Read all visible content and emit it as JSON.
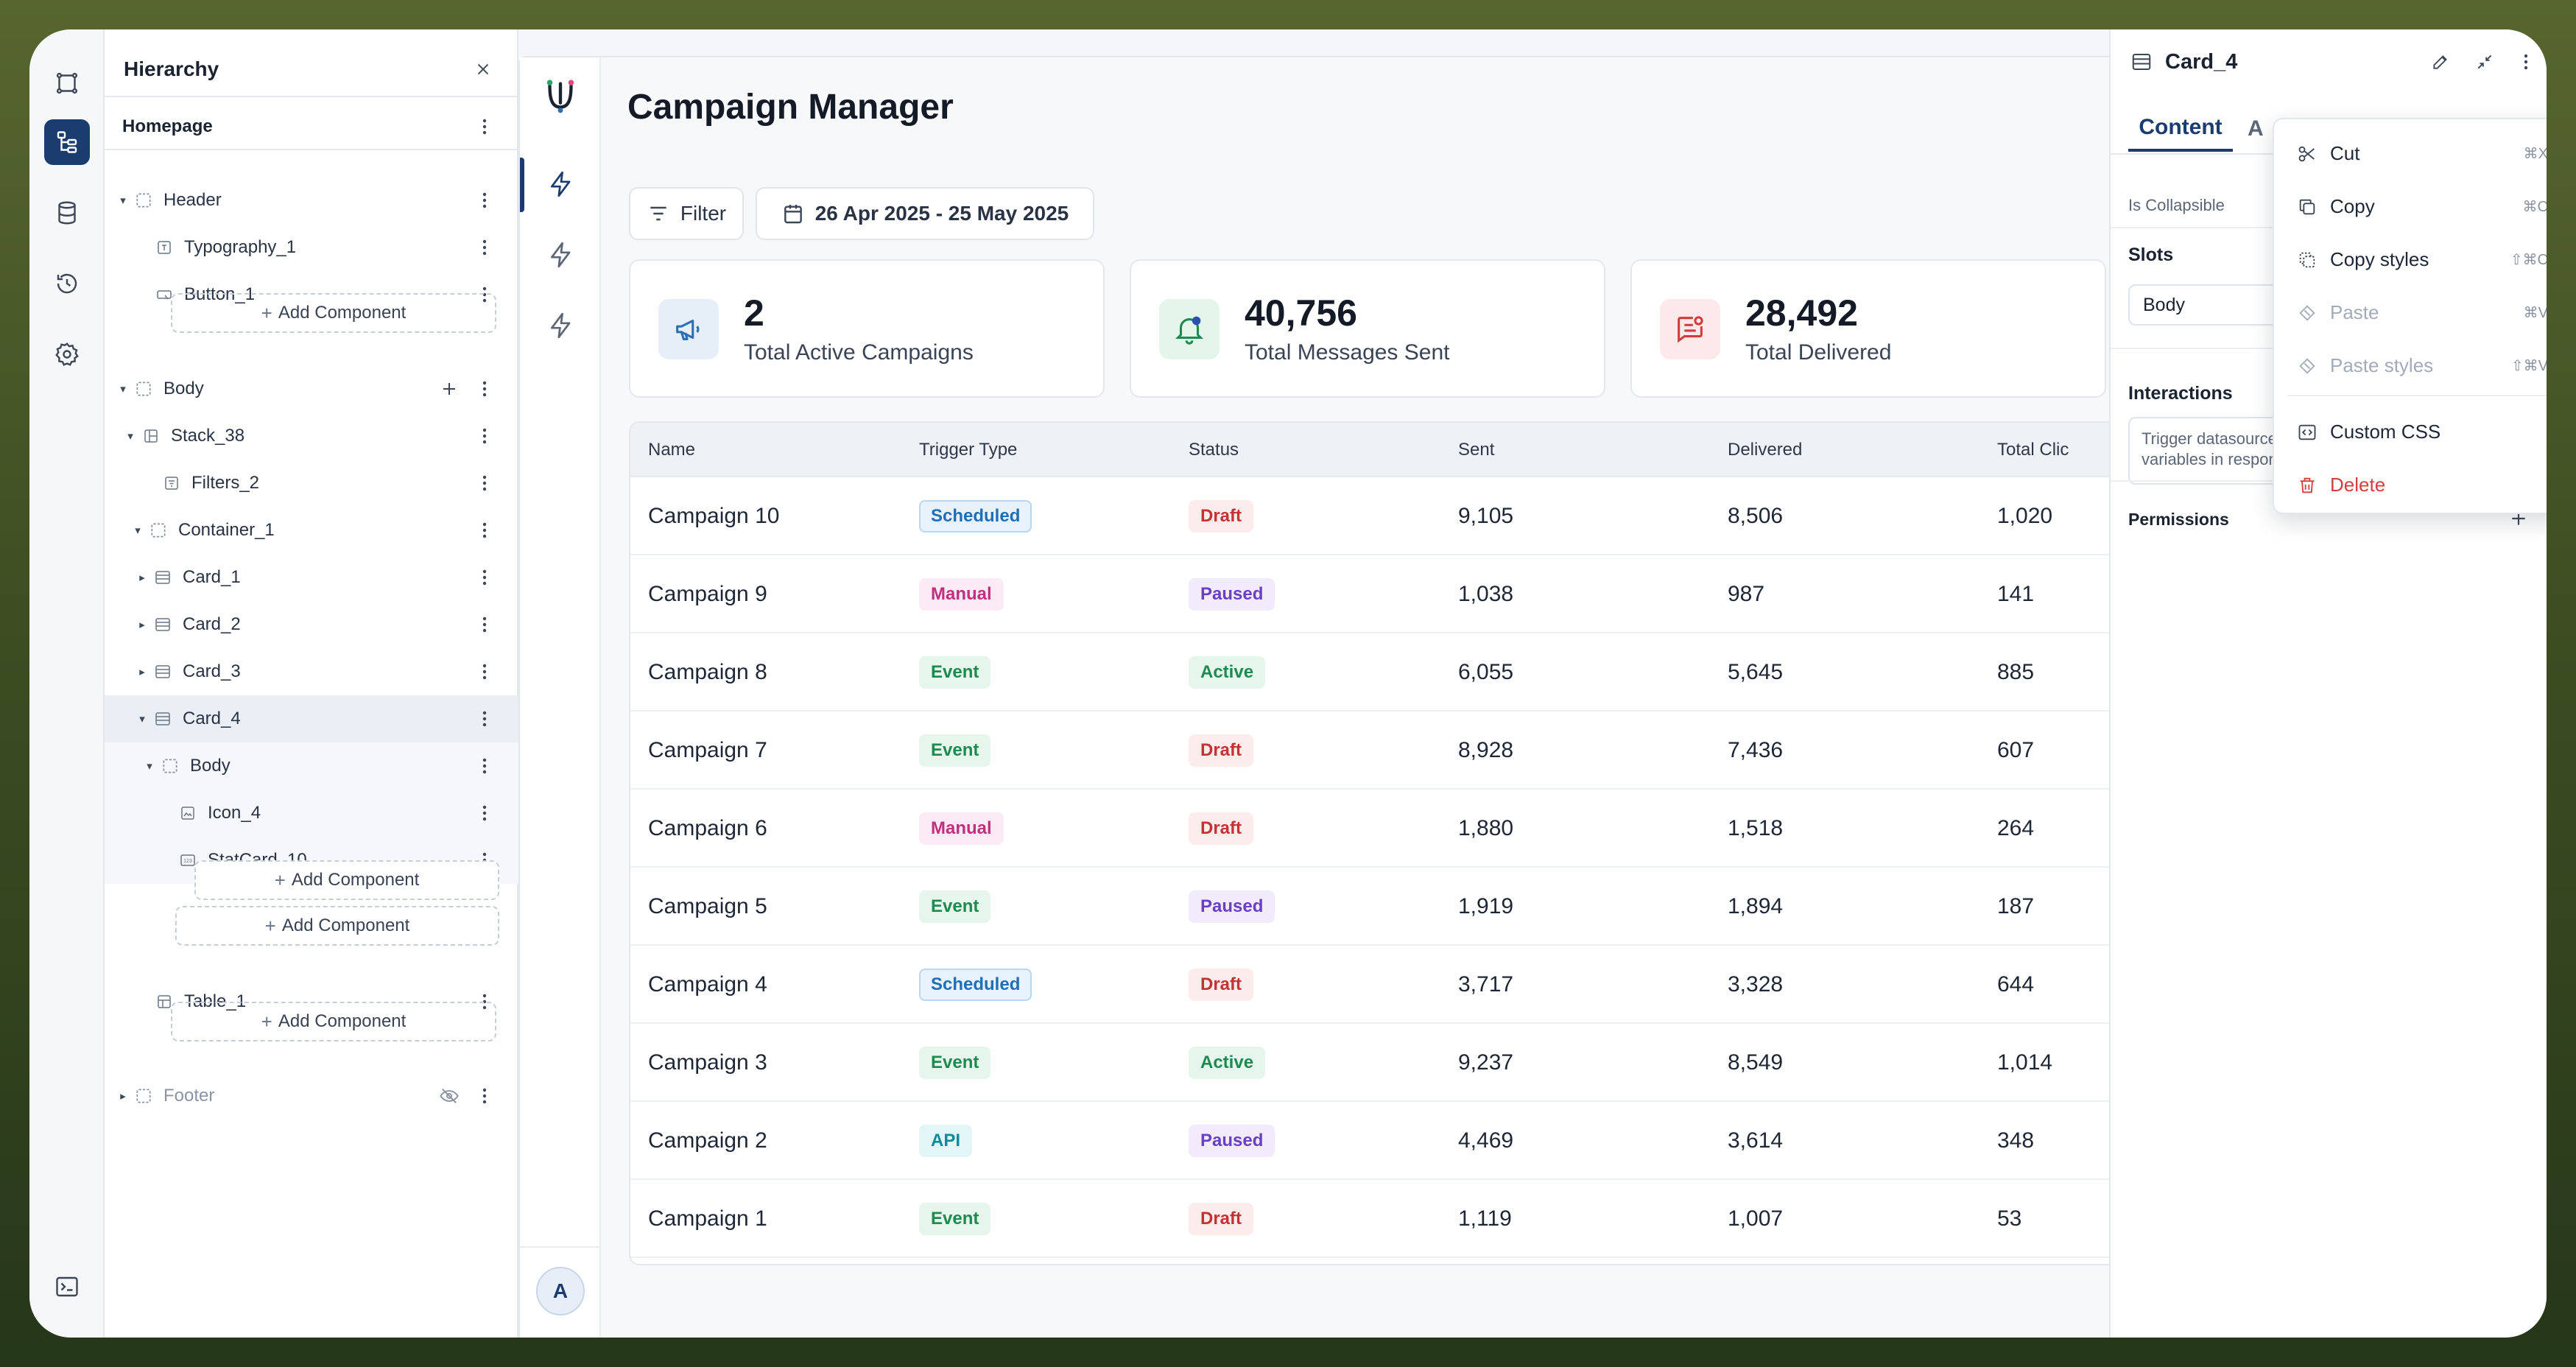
{
  "sidebar_rail": {
    "icons": [
      "frame-icon",
      "hierarchy-icon",
      "database-icon",
      "history-icon",
      "settings-icon",
      "terminal-icon"
    ],
    "active_color": "#1a3c6e"
  },
  "hierarchy": {
    "title": "Hierarchy",
    "page": "Homepage",
    "rows": [
      {
        "label": "Header",
        "icon": "container-icon",
        "caret": "▾"
      },
      {
        "label": "Typography_1",
        "icon": "text-icon",
        "caret": ""
      },
      {
        "label": "Button_1",
        "icon": "button-icon",
        "caret": ""
      },
      {
        "label": "Body",
        "icon": "container-icon",
        "caret": "▾"
      },
      {
        "label": "Stack_38",
        "icon": "stack-icon",
        "caret": "▾"
      },
      {
        "label": "Filters_2",
        "icon": "filter-icon",
        "caret": ""
      },
      {
        "label": "Container_1",
        "icon": "container-icon",
        "caret": "▾"
      },
      {
        "label": "Card_1",
        "icon": "card-icon",
        "caret": "▸"
      },
      {
        "label": "Card_2",
        "icon": "card-icon",
        "caret": "▸"
      },
      {
        "label": "Card_3",
        "icon": "card-icon",
        "caret": "▸"
      },
      {
        "label": "Card_4",
        "icon": "card-icon",
        "caret": "▾"
      },
      {
        "label": "Body",
        "icon": "container-icon",
        "caret": "▾"
      },
      {
        "label": "Icon_4",
        "icon": "image-icon",
        "caret": ""
      },
      {
        "label": "StatCard_10",
        "icon": "statcard-icon",
        "caret": ""
      },
      {
        "label": "Table_1",
        "icon": "table-icon",
        "caret": ""
      },
      {
        "label": "Footer",
        "icon": "container-icon",
        "caret": "▸"
      }
    ],
    "add_component": "Add Component"
  },
  "app": {
    "title": "Campaign Manager",
    "avatar": "A",
    "filter_label": "Filter",
    "date_range": "26 Apr 2025 - 25 May 2025",
    "stats": [
      {
        "value": "2",
        "label": "Total Active Campaigns",
        "icon": "megaphone-icon",
        "color": "#2c6fb3",
        "bg": "#e6eef8"
      },
      {
        "value": "40,756",
        "label": "Total Messages Sent",
        "icon": "bell-icon",
        "color": "#1e8a50",
        "bg": "#e4f5ea"
      },
      {
        "value": "28,492",
        "label": "Total Delivered",
        "icon": "message-check-icon",
        "color": "#d23b3b",
        "bg": "#fde9e9"
      }
    ],
    "table": {
      "headers": [
        "Name",
        "Trigger Type",
        "Status",
        "Sent",
        "Delivered",
        "Total Clic"
      ],
      "rows": [
        [
          "Campaign 10",
          "Scheduled",
          "Draft",
          "9,105",
          "8,506",
          "1,020"
        ],
        [
          "Campaign 9",
          "Manual",
          "Paused",
          "1,038",
          "987",
          "141"
        ],
        [
          "Campaign 8",
          "Event",
          "Active",
          "6,055",
          "5,645",
          "885"
        ],
        [
          "Campaign 7",
          "Event",
          "Draft",
          "8,928",
          "7,436",
          "607"
        ],
        [
          "Campaign 6",
          "Manual",
          "Draft",
          "1,880",
          "1,518",
          "264"
        ],
        [
          "Campaign 5",
          "Event",
          "Paused",
          "1,919",
          "1,894",
          "187"
        ],
        [
          "Campaign 4",
          "Scheduled",
          "Draft",
          "3,717",
          "3,328",
          "644"
        ],
        [
          "Campaign 3",
          "Event",
          "Active",
          "9,237",
          "8,549",
          "1,014"
        ],
        [
          "Campaign 2",
          "API",
          "Paused",
          "4,469",
          "3,614",
          "348"
        ],
        [
          "Campaign 1",
          "Event",
          "Draft",
          "1,119",
          "1,007",
          "53"
        ]
      ]
    },
    "badge_colors": {
      "Scheduled": {
        "fg": "#1f6fb8",
        "bg": "#e8f2fc",
        "border": "#b9d6f2"
      },
      "Manual": {
        "fg": "#c0307f",
        "bg": "#fcebf4",
        "border": "#fcebf4"
      },
      "Event": {
        "fg": "#1e8a50",
        "bg": "#e6f6ec",
        "border": "#e6f6ec"
      },
      "API": {
        "fg": "#0f8a9a",
        "bg": "#e2f6f8",
        "border": "#e2f6f8"
      },
      "Draft": {
        "fg": "#c23333",
        "bg": "#fdecec",
        "border": "#fdecec"
      },
      "Paused": {
        "fg": "#6a3fc4",
        "bg": "#f1ebfc",
        "border": "#f1ebfc"
      },
      "Active": {
        "fg": "#1e8a50",
        "bg": "#e6f6ec",
        "border": "#e6f6ec"
      }
    }
  },
  "inspector": {
    "title": "Card_4",
    "tab_content": "Content",
    "tab_other": "A",
    "is_collapsible": "Is Collapsible",
    "slots_label": "Slots",
    "slot_value": "Body",
    "interactions_label": "Interactions",
    "interactions_text": "Trigger datasource queries, navigate, or set variables in response to user actions",
    "permissions_label": "Permissions"
  },
  "context_menu": {
    "items": [
      {
        "label": "Cut",
        "shortcut": "⌘X",
        "icon": "scissors-icon",
        "state": "normal"
      },
      {
        "label": "Copy",
        "shortcut": "⌘C",
        "icon": "copy-icon",
        "state": "normal"
      },
      {
        "label": "Copy styles",
        "shortcut": "⇧⌘C",
        "icon": "copy-styles-icon",
        "state": "normal"
      },
      {
        "label": "Paste",
        "shortcut": "⌘V",
        "icon": "paste-icon",
        "state": "disabled"
      },
      {
        "label": "Paste styles",
        "shortcut": "⇧⌘V",
        "icon": "paste-styles-icon",
        "state": "disabled"
      },
      {
        "label": "Custom CSS",
        "shortcut": "",
        "icon": "code-icon",
        "state": "normal"
      },
      {
        "label": "Delete",
        "shortcut": "",
        "icon": "trash-icon",
        "state": "danger"
      }
    ]
  }
}
